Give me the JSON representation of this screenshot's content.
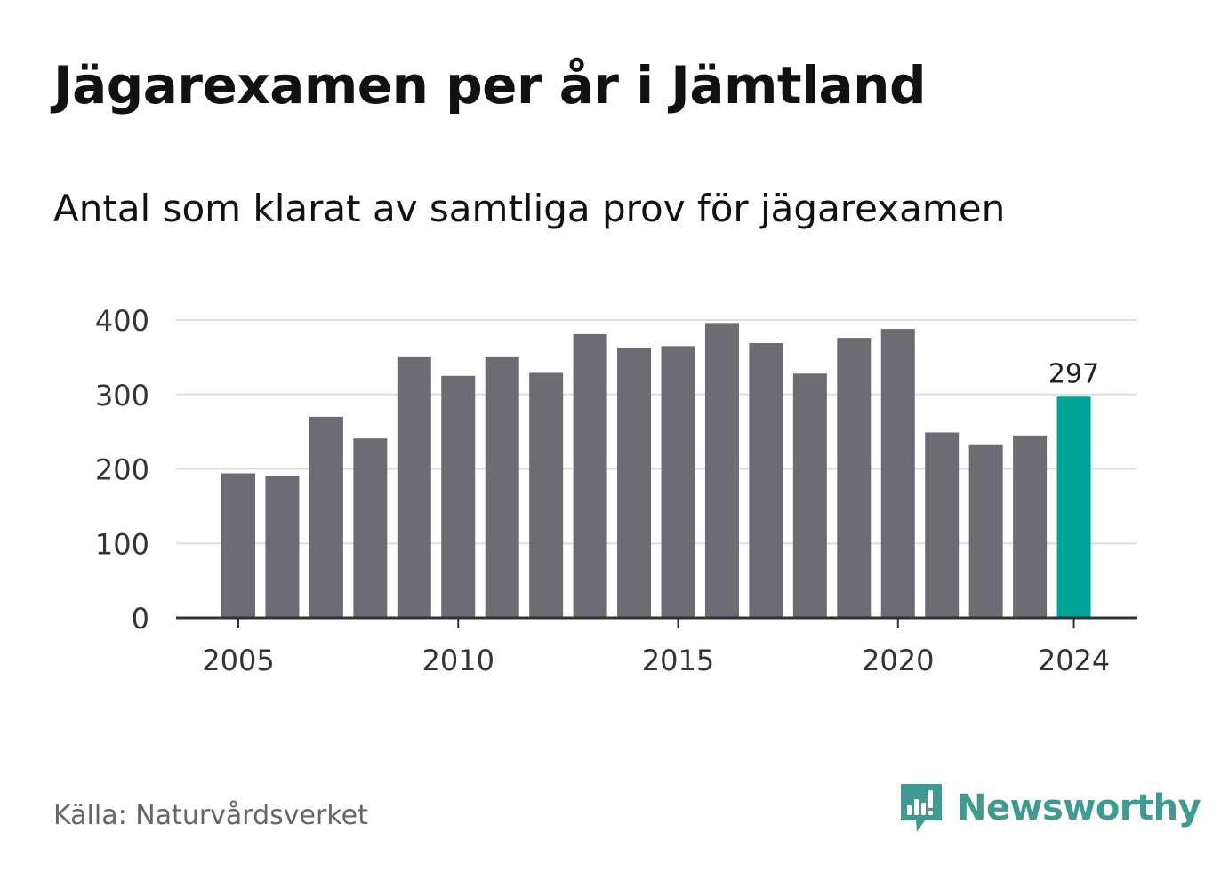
{
  "title": "Jägarexamen per år i Jämtland",
  "subtitle": "Antal som klarat av samtliga prov för jägarexamen",
  "source": "Källa: Naturvårdsverket",
  "brand": {
    "name": "Newsworthy",
    "icon": "newsworthy-logo-icon"
  },
  "colors": {
    "bar": "#6d6c72",
    "highlight": "#00a398",
    "grid": "#dddddd",
    "axis": "#333333",
    "brand": "#3f9a91"
  },
  "chart_data": {
    "type": "bar",
    "x": [
      2005,
      2006,
      2007,
      2008,
      2009,
      2010,
      2011,
      2012,
      2013,
      2014,
      2015,
      2016,
      2017,
      2018,
      2019,
      2020,
      2021,
      2022,
      2023,
      2024
    ],
    "values": [
      194,
      191,
      270,
      241,
      350,
      325,
      350,
      329,
      381,
      363,
      365,
      396,
      369,
      328,
      376,
      388,
      249,
      232,
      245,
      297
    ],
    "ylim": [
      0,
      400
    ],
    "yticks": [
      0,
      100,
      200,
      300,
      400
    ],
    "xticks": [
      2005,
      2010,
      2015,
      2020,
      2024
    ],
    "highlight": {
      "x": 2024,
      "label": "297"
    },
    "xlabel": "",
    "ylabel": "",
    "grid": true,
    "legend": "none"
  }
}
